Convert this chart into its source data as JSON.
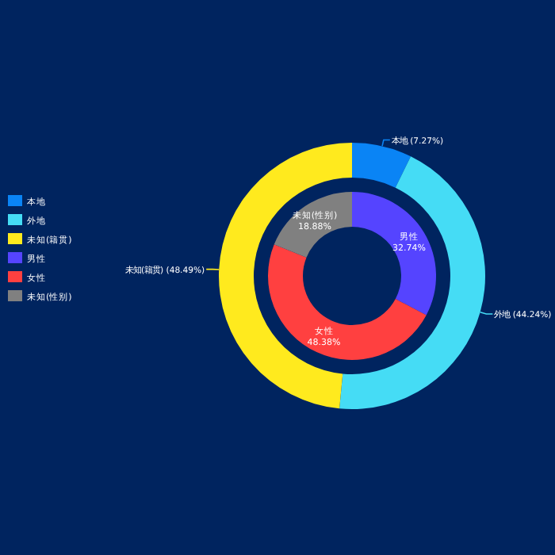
{
  "chart_data": {
    "type": "donut",
    "categories": [
      "本地",
      "外地",
      "未知(籍贯)",
      "男性",
      "女性",
      "未知(性别)"
    ],
    "colors": [
      "#0a84f5",
      "#45dcf5",
      "#ffea1e",
      "#5544ff",
      "#ff4040",
      "#808080"
    ],
    "legend": "left",
    "series": [
      {
        "values": [
          7.27,
          44.24,
          48.49,
          null,
          null,
          null
        ],
        "value_labels": [
          "本地 (7.27%)",
          "外地 (44.24%)",
          "未知(籍贯) (48.49%)",
          null,
          null,
          null
        ]
      },
      {
        "values": [
          null,
          null,
          null,
          32.74,
          48.38,
          18.88
        ],
        "value_labels": [
          null,
          null,
          null,
          "男性\n32.74%",
          "女性\n48.38%",
          "未知(性别)\n18.88%"
        ]
      }
    ]
  }
}
